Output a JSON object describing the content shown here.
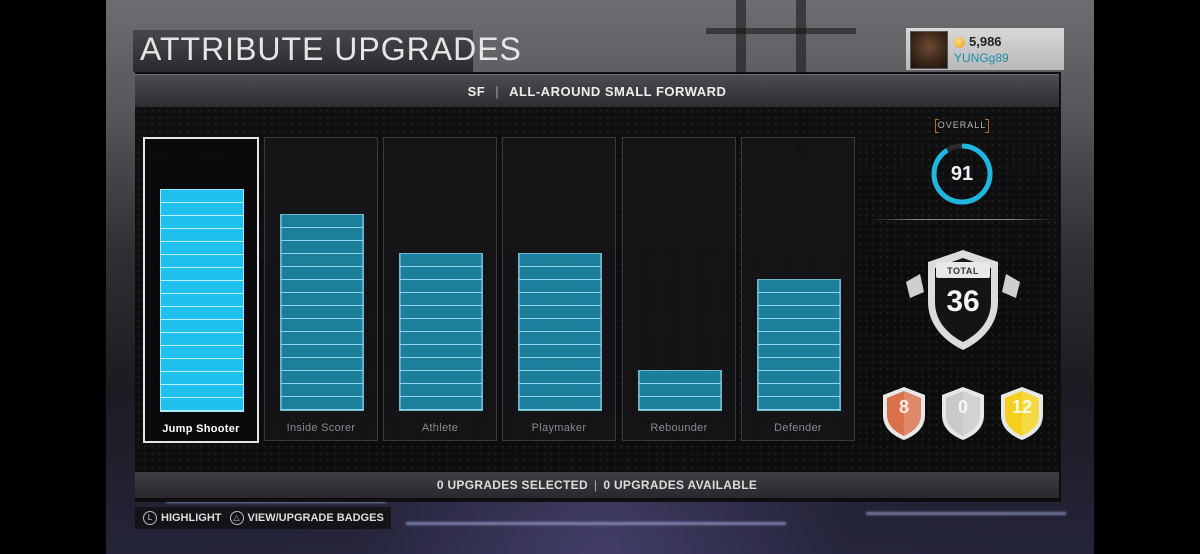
{
  "screen": {
    "title": "ATTRIBUTE UPGRADES"
  },
  "user": {
    "vc_amount": "5,986",
    "username": "YUNGg89",
    "coin_icon": "vc-coin-icon",
    "avatar_icon": "player-avatar-icon"
  },
  "header": {
    "position": "SF",
    "archetype": "ALL-AROUND SMALL FORWARD"
  },
  "categories": [
    {
      "label": "Jump Shooter",
      "segments": 17,
      "selected": true
    },
    {
      "label": "Inside Scorer",
      "segments": 15,
      "selected": false
    },
    {
      "label": "Athlete",
      "segments": 12,
      "selected": false
    },
    {
      "label": "Playmaker",
      "segments": 12,
      "selected": false
    },
    {
      "label": "Rebounder",
      "segments": 3,
      "selected": false
    },
    {
      "label": "Defender",
      "segments": 10,
      "selected": false
    }
  ],
  "overall": {
    "label": "OVERALL",
    "value": "91",
    "ring_fraction": 0.91,
    "ring_color": "#1fb6e0"
  },
  "total": {
    "label": "TOTAL",
    "value": "36"
  },
  "badges": [
    {
      "tier": "bronze",
      "count": "8",
      "color": "#d9704a"
    },
    {
      "tier": "silver",
      "count": "0",
      "color": "#c9c9c9"
    },
    {
      "tier": "gold",
      "count": "12",
      "color": "#f2d01c"
    }
  ],
  "footer": {
    "selected": "0 UPGRADES SELECTED",
    "available": "0 UPGRADES AVAILABLE"
  },
  "hints": [
    {
      "button": "L",
      "label": "HIGHLIGHT",
      "icon": "left-stick-icon"
    },
    {
      "button": "△",
      "label": "VIEW/UPGRADE BADGES",
      "icon": "triangle-button-icon"
    }
  ]
}
